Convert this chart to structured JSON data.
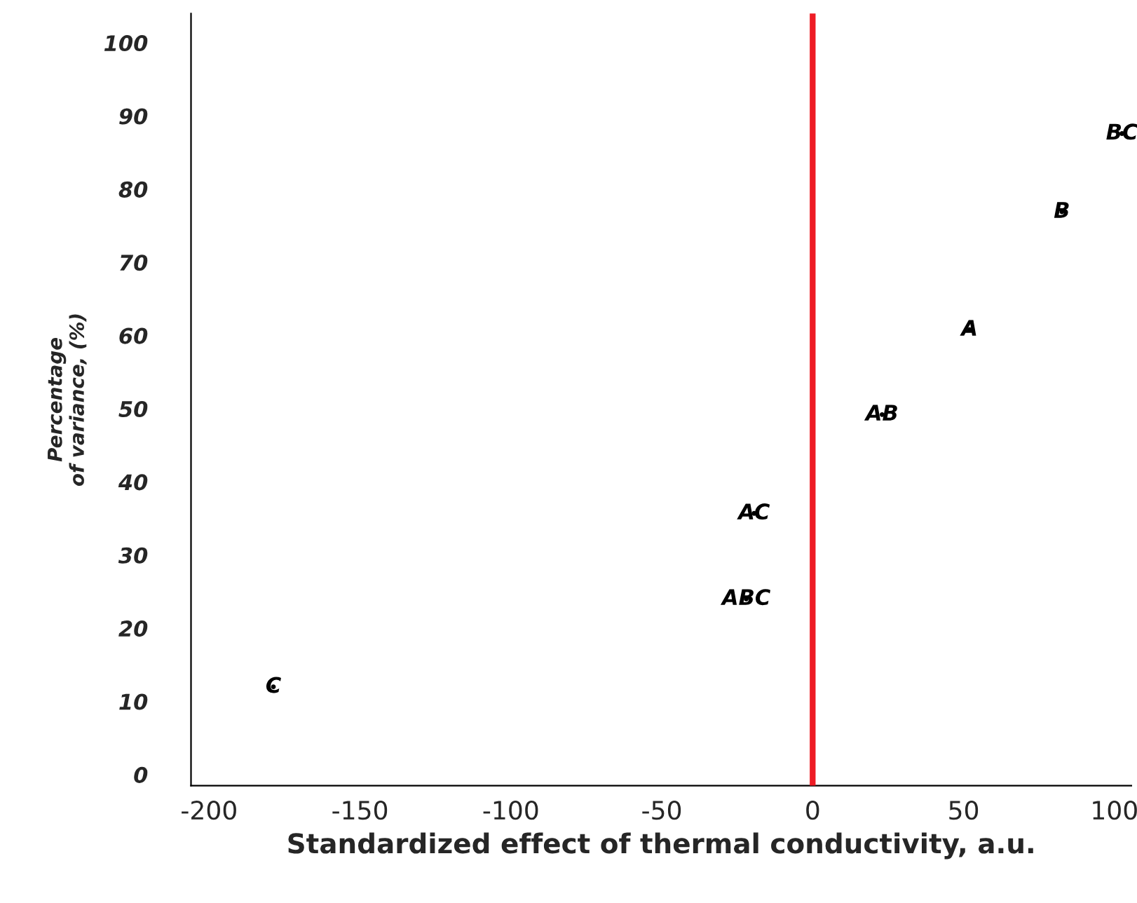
{
  "chart_data": {
    "type": "scatter",
    "xlabel": "Standardized effect of thermal conductivity, a.u.",
    "ylabel": "Percentage\nof variance, (%)",
    "marker": "circle",
    "series": [
      {
        "x": [
          -178.7,
          -22,
          -19.4,
          23,
          52,
          82.6,
          102.5
        ],
        "values": [
          12,
          24,
          35.7,
          49.2,
          60.8,
          76.9,
          87.6
        ],
        "color": "#000000"
      }
    ],
    "annotations": [
      {
        "text": "C",
        "x": -178.7,
        "y": 12
      },
      {
        "text": "ABC",
        "x": -22,
        "y": 24
      },
      {
        "text": "AC",
        "x": -19.4,
        "y": 35.7
      },
      {
        "text": "AB",
        "x": 23,
        "y": 49.2
      },
      {
        "text": "A",
        "x": 52,
        "y": 60.8
      },
      {
        "text": "B",
        "x": 82.6,
        "y": 76.9
      },
      {
        "text": "BC",
        "x": 102.5,
        "y": 87.6
      }
    ],
    "ref_lines": [
      {
        "axis": "x",
        "value": 0,
        "color": "#ee1c25"
      }
    ],
    "xlim": [
      -206,
      105.6
    ],
    "ylim": [
      -1.5,
      104
    ],
    "xticks": [
      -200,
      -150,
      -100,
      -50,
      0,
      50,
      100
    ],
    "yticks": [
      0,
      10,
      20,
      30,
      40,
      50,
      60,
      70,
      80,
      90,
      100
    ],
    "grid": false,
    "legend": false
  }
}
